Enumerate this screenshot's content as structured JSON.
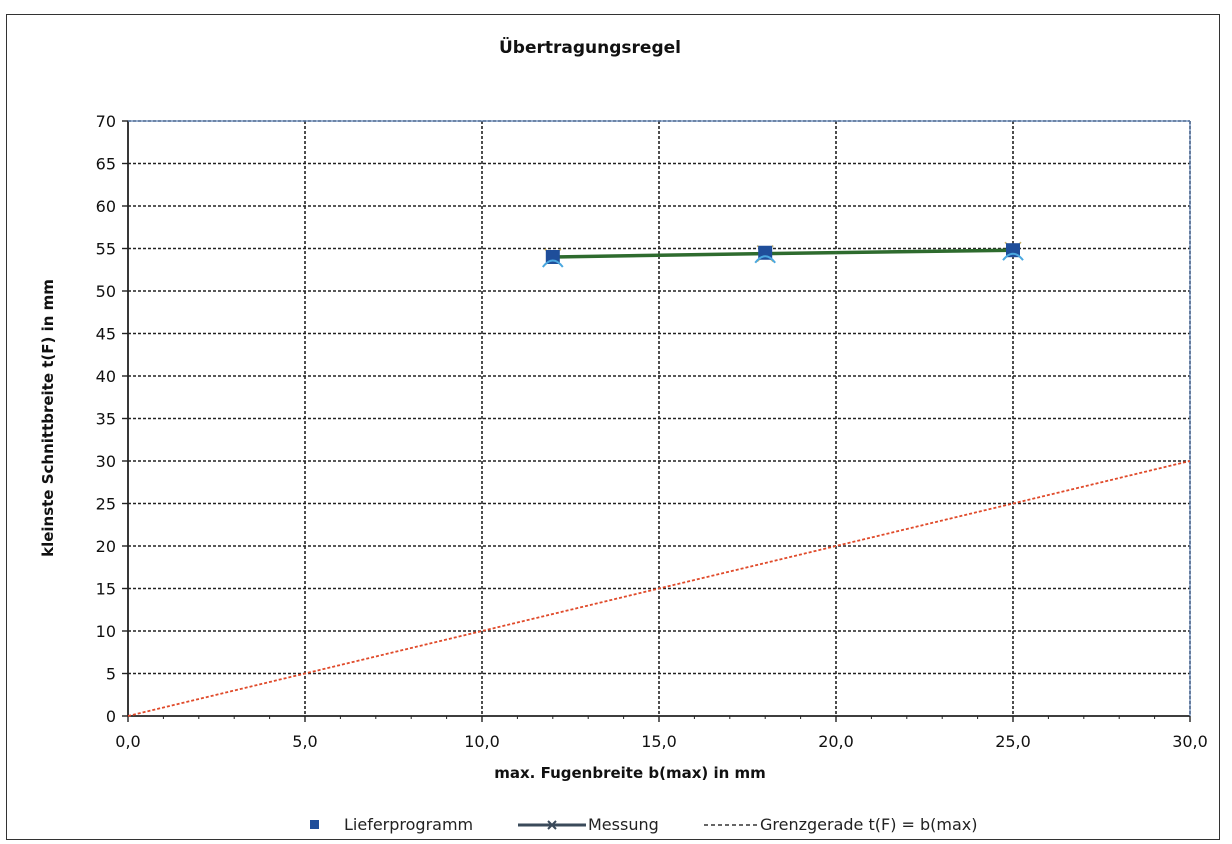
{
  "chart_data": {
    "type": "line",
    "title": "Übertragungsregel",
    "xlabel": "max. Fugenbreite b(max) in mm",
    "ylabel": "kleinste Schnittbreite t(F) in mm",
    "xlim": [
      0,
      30
    ],
    "ylim": [
      0,
      70
    ],
    "x_ticks": [
      "0,0",
      "5,0",
      "10,0",
      "15,0",
      "20,0",
      "25,0",
      "30,0"
    ],
    "y_ticks": [
      "0",
      "5",
      "10",
      "15",
      "20",
      "25",
      "30",
      "35",
      "40",
      "45",
      "50",
      "55",
      "60",
      "65",
      "70"
    ],
    "grid": true,
    "legend_position": "bottom",
    "series": [
      {
        "name": "Lieferprogramm",
        "style": "markers",
        "color": "#1f4e9a",
        "x": [
          12,
          18,
          25
        ],
        "y": [
          54,
          54.5,
          54.8
        ]
      },
      {
        "name": "Messung",
        "style": "line",
        "color": "#2e6b2e",
        "x": [
          12,
          18,
          25
        ],
        "y": [
          54,
          54.4,
          54.8
        ]
      },
      {
        "name": "Grenzgerade t(F) = b(max)",
        "style": "dashed",
        "color": "#e04a2a",
        "x": [
          0,
          30
        ],
        "y": [
          0,
          30
        ]
      }
    ]
  },
  "legend": {
    "items": [
      {
        "label": "Lieferprogramm"
      },
      {
        "label": "Messung"
      },
      {
        "label": "Grenzgerade t(F) = b(max)"
      }
    ]
  }
}
